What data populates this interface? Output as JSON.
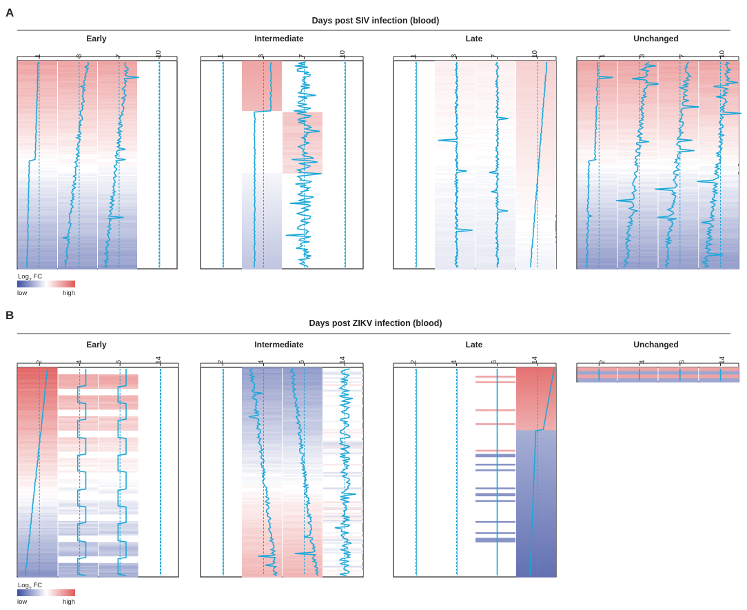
{
  "figure": {
    "colors": {
      "low": "#3b4da0",
      "mid": "#ffffff",
      "high": "#e05a5a",
      "trace": "#1ca7d8",
      "frame": "#222222",
      "rule": "#9a9a9a"
    },
    "legend": {
      "title": "Log",
      "title_sub": "2",
      "title_rest": " FC",
      "low_label": "low",
      "high_label": "high"
    },
    "panels": [
      {
        "label": "A",
        "title": "Days post SIV infection (blood)",
        "groups": [
          {
            "name": "Early",
            "ticks": [
              "1",
              "3",
              "7",
              "10"
            ],
            "columns": [
              {
                "present": true,
                "scheme": "descending",
                "trace": "step",
                "noise": 0.02,
                "spikes": 0.0
              },
              {
                "present": true,
                "scheme": "descending",
                "trace": "ramp",
                "noise": 0.08,
                "spikes": 0.02
              },
              {
                "present": true,
                "scheme": "descending",
                "trace": "ramp",
                "noise": 0.1,
                "spikes": 0.03
              },
              {
                "present": false
              }
            ]
          },
          {
            "name": "Intermediate",
            "ticks": [
              "1",
              "3",
              "7",
              "10"
            ],
            "columns": [
              {
                "present": false
              },
              {
                "present": true,
                "scheme": "intermediate",
                "trace": "intermediate",
                "noise": 0.03,
                "spikes": 0.0
              },
              {
                "present": true,
                "scheme": "intermediate2",
                "trace": "noisy",
                "noise": 0.35,
                "spikes": 0.15
              },
              {
                "present": false
              }
            ]
          },
          {
            "name": "Late",
            "ticks": [
              "1",
              "3",
              "7",
              "10"
            ],
            "columns": [
              {
                "present": false
              },
              {
                "present": true,
                "scheme": "faint",
                "trace": "flat",
                "noise": 0.07,
                "spikes": 0.03
              },
              {
                "present": true,
                "scheme": "faint",
                "trace": "flat",
                "noise": 0.07,
                "spikes": 0.03
              },
              {
                "present": true,
                "scheme": "lateshade",
                "trace": "late",
                "noise": 0.02,
                "spikes": 0.0
              }
            ]
          },
          {
            "name": "Unchanged",
            "ticks": [
              "1",
              "3",
              "7",
              "10"
            ],
            "columns": [
              {
                "present": true,
                "scheme": "descending",
                "trace": "step",
                "noise": 0.04,
                "spikes": 0.01
              },
              {
                "present": true,
                "scheme": "descending",
                "trace": "ramp",
                "noise": 0.12,
                "spikes": 0.05
              },
              {
                "present": true,
                "scheme": "descending",
                "trace": "ramp",
                "noise": 0.13,
                "spikes": 0.06
              },
              {
                "present": true,
                "scheme": "descending",
                "trace": "ramp",
                "noise": 0.14,
                "spikes": 0.07
              }
            ]
          }
        ]
      },
      {
        "label": "B",
        "title": "Days post ZIKV infection (blood)",
        "groups": [
          {
            "name": "Early",
            "ticks": [
              "2",
              "4",
              "6",
              "14"
            ],
            "columns": [
              {
                "present": true,
                "scheme": "descending_strong",
                "trace": "ramp",
                "noise": 0.02,
                "spikes": 0.0
              },
              {
                "present": true,
                "scheme": "banded",
                "trace": "steps",
                "noise": 0.0,
                "spikes": 0.0
              },
              {
                "present": true,
                "scheme": "banded",
                "trace": "steps",
                "noise": 0.0,
                "spikes": 0.0
              },
              {
                "present": false
              }
            ]
          },
          {
            "name": "Intermediate",
            "ticks": [
              "2",
              "4",
              "6",
              "14"
            ],
            "columns": [
              {
                "present": false
              },
              {
                "present": true,
                "scheme": "ascending",
                "trace": "rampdown",
                "noise": 0.1,
                "spikes": 0.03
              },
              {
                "present": true,
                "scheme": "ascending",
                "trace": "rampdown",
                "noise": 0.1,
                "spikes": 0.03
              },
              {
                "present": true,
                "scheme": "sparse",
                "trace": "sparse",
                "noise": 0.25,
                "spikes": 0.1
              }
            ]
          },
          {
            "name": "Late",
            "ticks": [
              "2",
              "4",
              "6",
              "14"
            ],
            "columns": [
              {
                "present": false
              },
              {
                "present": false
              },
              {
                "present": true,
                "scheme": "sparse_lines",
                "trace": "sparse_lines",
                "noise": 0.0,
                "spikes": 0.0
              },
              {
                "present": true,
                "scheme": "late_strong",
                "trace": "late_curve",
                "noise": 0.0,
                "spikes": 0.0
              }
            ]
          },
          {
            "name": "Unchanged",
            "ticks": [
              "2",
              "4",
              "6",
              "14"
            ],
            "columns": [
              {
                "present": true,
                "scheme": "strip",
                "trace": "strip",
                "noise": 0.0,
                "spikes": 0.0
              },
              {
                "present": true,
                "scheme": "strip",
                "trace": "strip",
                "noise": 0.0,
                "spikes": 0.0
              },
              {
                "present": true,
                "scheme": "strip",
                "trace": "strip",
                "noise": 0.0,
                "spikes": 0.0
              },
              {
                "present": true,
                "scheme": "strip",
                "trace": "strip",
                "noise": 0.0,
                "spikes": 0.0
              }
            ]
          }
        ]
      }
    ]
  }
}
